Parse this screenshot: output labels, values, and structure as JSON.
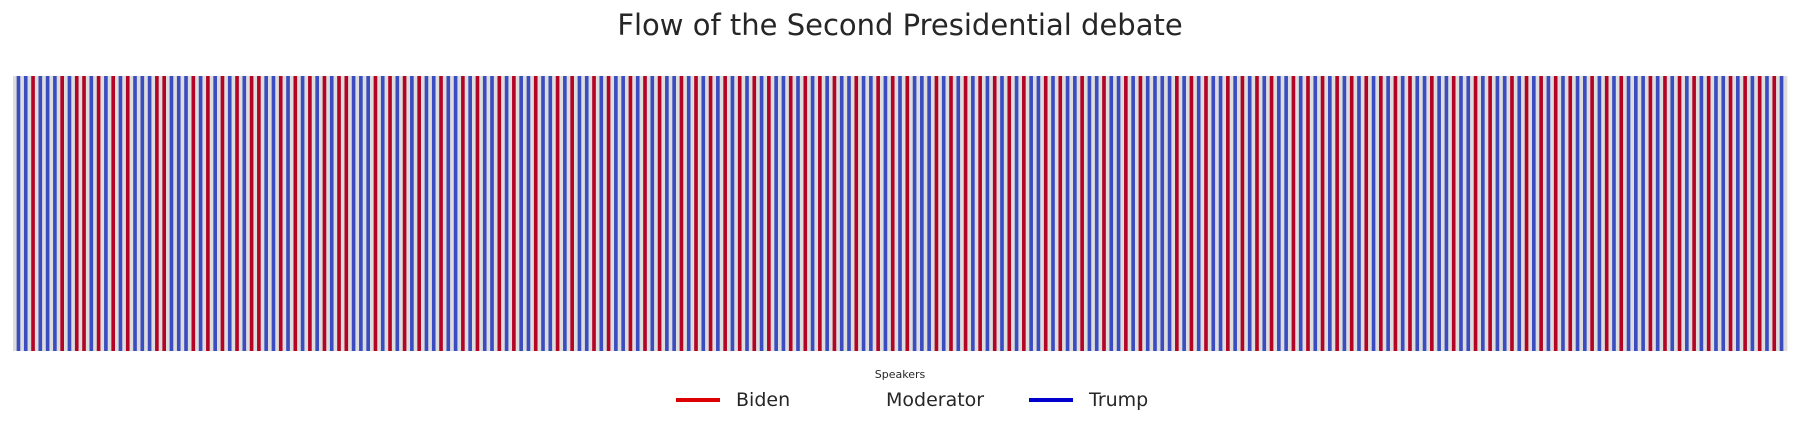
{
  "chart_data": {
    "type": "heatmap",
    "title": "Flow of the Second Presidential debate",
    "xlabel": "",
    "ylabel": "",
    "grid": false,
    "legend": {
      "title": "Speakers",
      "placement": "bottom-center",
      "entries": [
        {
          "label": "Biden",
          "color": "#dd0000",
          "swatch": "line"
        },
        {
          "label": "Moderator",
          "color": "#dddddd",
          "swatch": "none"
        },
        {
          "label": "Trump",
          "color": "#0000cc",
          "swatch": "line"
        }
      ]
    },
    "fill_colors": {
      "Biden": "#b40426",
      "Moderator": "#dddddd",
      "Trump": "#3b4cc0"
    },
    "sequence": [
      "M",
      "T",
      "M",
      "T",
      "M",
      "B",
      "M",
      "T",
      "M",
      "T",
      "M",
      "T",
      "M",
      "B",
      "M",
      "T",
      "M",
      "B",
      "M",
      "B",
      "M",
      "T",
      "M",
      "B",
      "M",
      "T",
      "M",
      "B",
      "M",
      "T",
      "M",
      "B",
      "M",
      "T",
      "M",
      "T",
      "M",
      "T",
      "M",
      "B",
      "M",
      "B",
      "M",
      "T",
      "M",
      "T",
      "M",
      "T",
      "M",
      "B",
      "M",
      "T",
      "M",
      "B",
      "M",
      "T",
      "M",
      "B",
      "M",
      "T",
      "M",
      "B",
      "M",
      "T",
      "M",
      "B",
      "M",
      "B",
      "M",
      "T",
      "M",
      "T",
      "M",
      "B",
      "M",
      "T",
      "M",
      "B",
      "M",
      "T",
      "M",
      "B",
      "M",
      "T",
      "M",
      "B",
      "M",
      "T",
      "M",
      "B",
      "M",
      "B",
      "M",
      "T",
      "M",
      "T",
      "M",
      "T",
      "M",
      "B",
      "M",
      "T",
      "M",
      "B",
      "M",
      "T",
      "M",
      "B",
      "M",
      "T",
      "M",
      "B",
      "M",
      "T",
      "M",
      "T",
      "M",
      "B",
      "M",
      "T",
      "M",
      "T",
      "M",
      "B",
      "M",
      "T",
      "M",
      "B",
      "M",
      "T",
      "M",
      "T",
      "M",
      "B",
      "M",
      "T",
      "M",
      "B",
      "M",
      "T",
      "M",
      "T",
      "M",
      "B",
      "M",
      "T",
      "M",
      "T",
      "M",
      "B",
      "M",
      "T",
      "M",
      "B",
      "M",
      "T",
      "M",
      "T",
      "M",
      "B",
      "M",
      "T",
      "M",
      "B",
      "M",
      "T",
      "M",
      "T",
      "M",
      "B",
      "M",
      "T",
      "M",
      "B",
      "M",
      "T",
      "M",
      "B",
      "M",
      "T",
      "M",
      "T",
      "M",
      "B",
      "M",
      "T",
      "M",
      "B",
      "M",
      "T",
      "M",
      "B",
      "M",
      "T",
      "M",
      "B",
      "M",
      "T",
      "M",
      "B",
      "M",
      "T",
      "M",
      "B",
      "M",
      "T",
      "M",
      "B",
      "M",
      "T",
      "M",
      "T",
      "M",
      "B",
      "M",
      "T",
      "M",
      "B",
      "M",
      "T",
      "M",
      "B",
      "M",
      "T",
      "M",
      "B",
      "M",
      "T",
      "M",
      "T",
      "M",
      "B",
      "M",
      "T",
      "M",
      "T",
      "M",
      "B",
      "M",
      "T",
      "M",
      "B",
      "M",
      "T",
      "M",
      "B",
      "M",
      "T",
      "M",
      "T",
      "M",
      "T",
      "M",
      "B",
      "M",
      "T",
      "M",
      "B",
      "M",
      "T",
      "M",
      "B",
      "M",
      "T",
      "M",
      "B",
      "M",
      "T",
      "M",
      "B",
      "M",
      "T",
      "M",
      "B",
      "M",
      "T",
      "M",
      "B",
      "M",
      "T",
      "M",
      "T",
      "M",
      "B",
      "M",
      "T",
      "M",
      "B",
      "M",
      "T",
      "M",
      "T",
      "M",
      "B",
      "M",
      "T",
      "M",
      "T",
      "M",
      "B",
      "M",
      "T",
      "M",
      "T",
      "M",
      "B",
      "M",
      "T",
      "M",
      "B",
      "M",
      "T",
      "M",
      "T",
      "M",
      "T",
      "M",
      "T",
      "M",
      "B",
      "M",
      "T",
      "M",
      "B",
      "M",
      "T",
      "M",
      "B",
      "M",
      "T",
      "M",
      "T",
      "M",
      "B",
      "M",
      "T",
      "M",
      "B",
      "M",
      "T",
      "M",
      "B",
      "M",
      "T",
      "M",
      "B",
      "M",
      "T",
      "M",
      "T",
      "M",
      "B",
      "M",
      "T",
      "M",
      "B",
      "M",
      "T",
      "M",
      "B",
      "M",
      "T",
      "M",
      "B",
      "M",
      "T",
      "M",
      "B",
      "M",
      "T",
      "M",
      "B",
      "M",
      "T",
      "M",
      "B",
      "M",
      "T",
      "M",
      "B",
      "M",
      "T",
      "M",
      "B",
      "M",
      "T",
      "M",
      "T",
      "M",
      "B",
      "M",
      "T",
      "M",
      "T",
      "M",
      "B",
      "M",
      "T",
      "M",
      "T",
      "M",
      "B",
      "M",
      "T",
      "M",
      "B",
      "M",
      "T",
      "M",
      "T",
      "M",
      "B",
      "M",
      "T",
      "M",
      "B",
      "M",
      "T",
      "M",
      "B",
      "M",
      "T",
      "M",
      "B",
      "M",
      "T",
      "M",
      "B",
      "M",
      "T",
      "M",
      "T",
      "M",
      "B",
      "M",
      "T",
      "M",
      "B",
      "M",
      "T",
      "M",
      "B",
      "M",
      "T",
      "M",
      "T",
      "M",
      "T",
      "M",
      "B",
      "M",
      "T",
      "M",
      "B",
      "M",
      "T",
      "M",
      "B",
      "M",
      "T",
      "M",
      "B",
      "M",
      "T",
      "M",
      "B",
      "M",
      "T",
      "M",
      "T",
      "M",
      "B",
      "M",
      "T",
      "M",
      "B",
      "M",
      "T",
      "M",
      "B",
      "M",
      "T",
      "M",
      "B",
      "M",
      "T",
      "M"
    ]
  }
}
